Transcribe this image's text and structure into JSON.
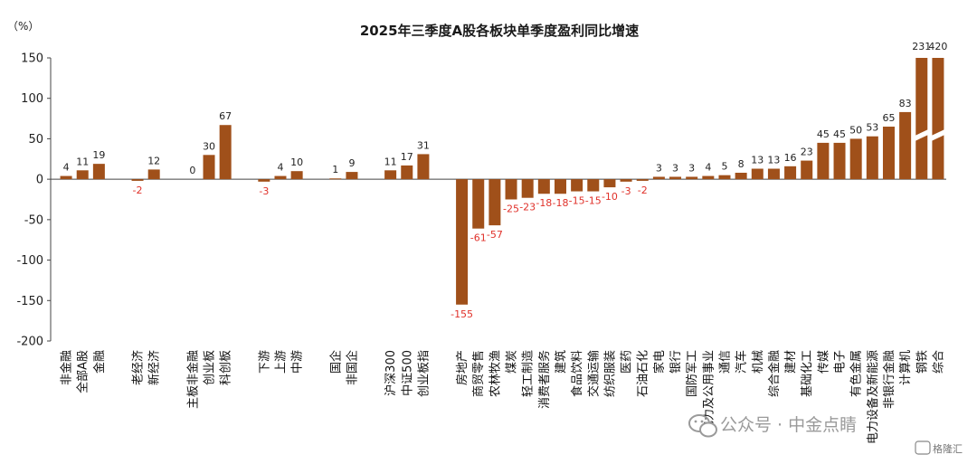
{
  "chart_data": {
    "type": "bar",
    "title": "2025年三季度A股各板块单季度盈利同比增速",
    "ylabel": "（%）",
    "ylim": [
      -200,
      150
    ],
    "yticks": [
      150,
      100,
      50,
      0,
      -50,
      -100,
      -150,
      -200
    ],
    "grid": false,
    "bar_color": "#a0501a",
    "positive_label_color": "#222222",
    "negative_label_color": "#e0312a",
    "groups": [
      [
        {
          "name": "非金融",
          "value": 4
        },
        {
          "name": "全部A股",
          "value": 11
        },
        {
          "name": "金融",
          "value": 19
        }
      ],
      [
        {
          "name": "老经济",
          "value": -2
        },
        {
          "name": "新经济",
          "value": 12
        }
      ],
      [
        {
          "name": "主板非金融",
          "value": 0
        },
        {
          "name": "创业板",
          "value": 30
        },
        {
          "name": "科创板",
          "value": 67
        }
      ],
      [
        {
          "name": "下游",
          "value": -3
        },
        {
          "name": "上游",
          "value": 4
        },
        {
          "name": "中游",
          "value": 10
        }
      ],
      [
        {
          "name": "国企",
          "value": 1
        },
        {
          "name": "非国企",
          "value": 9
        }
      ],
      [
        {
          "name": "沪深300",
          "value": 11
        },
        {
          "name": "中证500",
          "value": 17
        },
        {
          "name": "创业板指",
          "value": 31
        }
      ],
      [
        {
          "name": "房地产",
          "value": -155
        },
        {
          "name": "商贸零售",
          "value": -61
        },
        {
          "name": "农林牧渔",
          "value": -57
        },
        {
          "name": "煤炭",
          "value": -25
        },
        {
          "name": "轻工制造",
          "value": -23
        },
        {
          "name": "消费者服务",
          "value": -18
        },
        {
          "name": "建筑",
          "value": -18
        },
        {
          "name": "食品饮料",
          "value": -15
        },
        {
          "name": "交通运输",
          "value": -15
        },
        {
          "name": "纺织服装",
          "value": -10
        },
        {
          "name": "医药",
          "value": -3
        },
        {
          "name": "石油石化",
          "value": -2
        },
        {
          "name": "家电",
          "value": 3
        },
        {
          "name": "银行",
          "value": 3
        },
        {
          "name": "国防军工",
          "value": 3
        },
        {
          "name": "电力及公用事业",
          "value": 4
        },
        {
          "name": "通信",
          "value": 5
        },
        {
          "name": "汽车",
          "value": 8
        },
        {
          "name": "机械",
          "value": 13
        },
        {
          "name": "综合金融",
          "value": 13
        },
        {
          "name": "建材",
          "value": 16
        },
        {
          "name": "基础化工",
          "value": 23
        },
        {
          "name": "传媒",
          "value": 45
        },
        {
          "name": "电子",
          "value": 45
        },
        {
          "name": "有色金属",
          "value": 50
        },
        {
          "name": "电力设备及新能源",
          "value": 53
        },
        {
          "name": "非银行金融",
          "value": 65
        },
        {
          "name": "计算机",
          "value": 83
        },
        {
          "name": "钢铁",
          "value": 231
        },
        {
          "name": "综合",
          "value": 420
        }
      ]
    ]
  },
  "watermark": {
    "text": "公众号 · 中金点睛",
    "logo_text": "格隆汇"
  }
}
